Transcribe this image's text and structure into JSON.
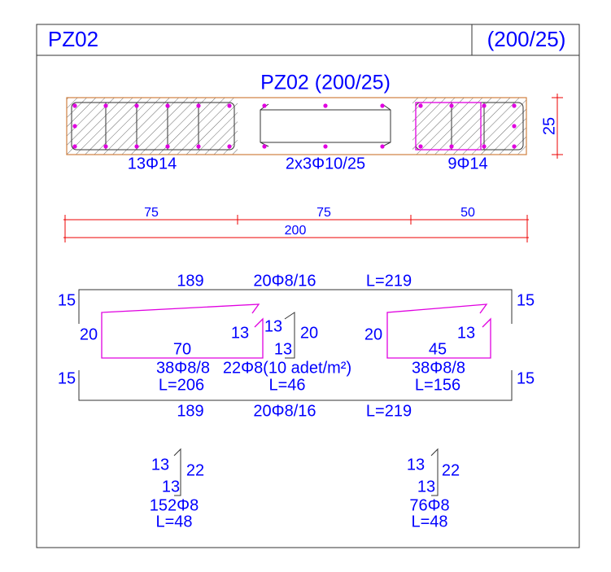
{
  "header": {
    "title": "PZ02",
    "size": "(200/25)"
  },
  "section": {
    "title": "PZ02 (200/25)",
    "labels": [
      "13Φ14",
      "2x3Φ10/25",
      "9Φ14"
    ],
    "thickness": "25"
  },
  "dimensions": {
    "segments": [
      "75",
      "75",
      "50"
    ],
    "total": "200"
  },
  "bars": {
    "top": {
      "length": "189",
      "spec": "20Φ8/16",
      "total": "L=219",
      "legs": [
        "15",
        "15"
      ]
    },
    "bottom": {
      "length": "189",
      "spec": "20Φ8/16",
      "total": "L=219",
      "legs": [
        "15",
        "15"
      ]
    },
    "stirrup_left": {
      "height": "20",
      "width": "70",
      "hook": "13",
      "spec": "38Φ8/8",
      "total": "L=206"
    },
    "tie": {
      "hooks": [
        "13",
        "13"
      ],
      "height": "20",
      "spec": "22Φ8(10 adet/m²)",
      "total": "L=46"
    },
    "stirrup_right": {
      "height": "20",
      "width": "45",
      "hook": "13",
      "spec": "38Φ8/8",
      "total": "L=156"
    },
    "hook_left": {
      "hooks": [
        "13",
        "13"
      ],
      "height": "22",
      "spec": "152Φ8",
      "total": "L=48"
    },
    "hook_right": {
      "hooks": [
        "13",
        "13"
      ],
      "height": "22",
      "spec": "76Φ8",
      "total": "L=48"
    }
  }
}
